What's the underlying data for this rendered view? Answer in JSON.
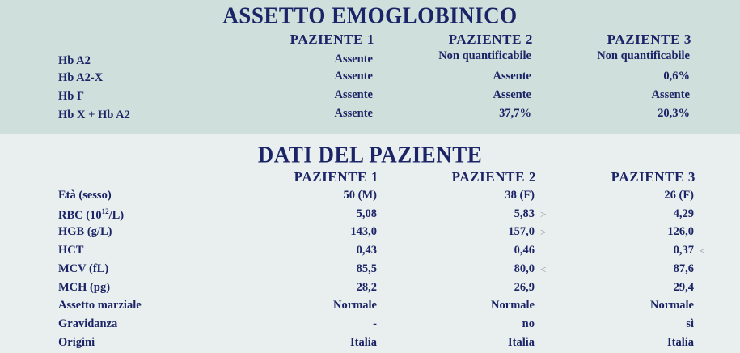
{
  "hemoglobin": {
    "title": "ASSETTO EMOGLOBINICO",
    "headers": [
      "PAZIENTE 1",
      "PAZIENTE 2",
      "PAZIENTE 3"
    ],
    "rows": [
      {
        "label": "Hb A2",
        "values": [
          "Assente",
          "Non quantificabile",
          "Non quantificabile"
        ]
      },
      {
        "label": "Hb A2-X",
        "values": [
          "Assente",
          "Assente",
          "0,6%"
        ]
      },
      {
        "label": "Hb F",
        "values": [
          "Assente",
          "Assente",
          "Assente"
        ]
      },
      {
        "label": "Hb X + Hb A2",
        "values": [
          "Assente",
          "37,7%",
          "20,3%"
        ]
      }
    ]
  },
  "patient": {
    "title": "DATI DEL PAZIENTE",
    "headers": [
      "PAZIENTE 1",
      "PAZIENTE 2",
      "PAZIENTE 3"
    ],
    "rows": [
      {
        "label": "Età (sesso)",
        "values": [
          "50 (M)",
          "38 (F)",
          "26 (F)"
        ],
        "flags": [
          "",
          "",
          ""
        ]
      },
      {
        "label": "RBC (10",
        "sup": "12",
        "label_suffix": "/L)",
        "values": [
          "5,08",
          "5,83",
          "4,29"
        ],
        "flags": [
          "",
          ">",
          ""
        ]
      },
      {
        "label": "HGB (g/L)",
        "values": [
          "143,0",
          "157,0",
          "126,0"
        ],
        "flags": [
          "",
          ">",
          ""
        ]
      },
      {
        "label": "HCT",
        "values": [
          "0,43",
          "0,46",
          "0,37"
        ],
        "flags": [
          "",
          "",
          "<"
        ]
      },
      {
        "label": "MCV (fL)",
        "values": [
          "85,5",
          "80,0",
          "87,6"
        ],
        "flags": [
          "",
          "<",
          ""
        ]
      },
      {
        "label": "MCH (pg)",
        "values": [
          "28,2",
          "26,9",
          "29,4"
        ],
        "flags": [
          "",
          "",
          ""
        ]
      },
      {
        "label": "Assetto marziale",
        "values": [
          "Normale",
          "Normale",
          "Normale"
        ],
        "flags": [
          "",
          "",
          ""
        ]
      },
      {
        "label": "Gravidanza",
        "values": [
          "-",
          "no",
          "sì"
        ],
        "flags": [
          "",
          "",
          ""
        ]
      },
      {
        "label": "Origini",
        "values": [
          "Italia",
          "Italia",
          "Italia"
        ],
        "flags": [
          "",
          "",
          ""
        ]
      }
    ]
  }
}
